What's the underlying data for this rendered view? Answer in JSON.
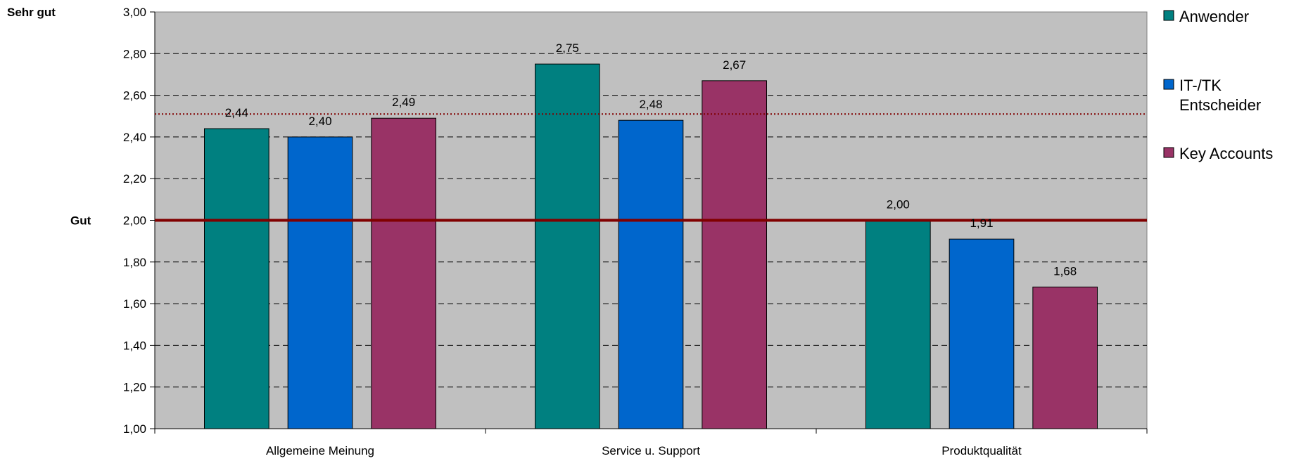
{
  "chart_data": {
    "type": "bar",
    "categories": [
      "Allgemeine Meinung",
      "Service u. Support",
      "Produktqualität"
    ],
    "series": [
      {
        "name": "Anwender",
        "legend_lines": [
          "Anwender"
        ],
        "color": "#008080",
        "values": [
          2.44,
          2.75,
          2.0
        ],
        "labels": [
          "2,44",
          "2,75",
          "2,00"
        ]
      },
      {
        "name": "IT-/TK Entscheider",
        "legend_lines": [
          "IT-/TK",
          "Entscheider"
        ],
        "color": "#0066CC",
        "values": [
          2.4,
          2.48,
          1.91
        ],
        "labels": [
          "2,40",
          "2,48",
          "1,91"
        ]
      },
      {
        "name": "Key Accounts",
        "legend_lines": [
          "Key Accounts"
        ],
        "color": "#993366",
        "values": [
          2.49,
          2.67,
          1.68
        ],
        "labels": [
          "2,49",
          "2,67",
          "1,68"
        ]
      }
    ],
    "ylim": [
      1.0,
      3.0
    ],
    "yticks": [
      1.0,
      1.2,
      1.4,
      1.6,
      1.8,
      2.0,
      2.2,
      2.4,
      2.6,
      2.8,
      3.0
    ],
    "ytick_labels": [
      "1,00",
      "1,20",
      "1,40",
      "1,60",
      "1,80",
      "2,00",
      "2,20",
      "2,40",
      "2,60",
      "2,80",
      "3,00"
    ],
    "grid": true,
    "reference_lines": [
      {
        "value": 2.0,
        "style": "solid",
        "color": "#800000"
      },
      {
        "value": 2.51,
        "style": "dotted",
        "color": "#800000"
      }
    ],
    "side_labels": [
      {
        "text": "Sehr gut",
        "value": 3.0
      },
      {
        "text": "Gut",
        "value": 2.0
      }
    ],
    "legend_position": "right",
    "plot_background": "#C0C0C0"
  }
}
